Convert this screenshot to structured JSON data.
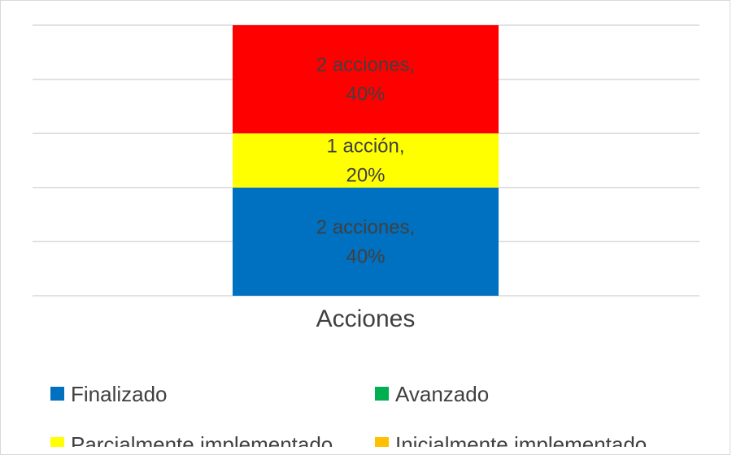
{
  "chart_data": {
    "type": "bar",
    "stacked": true,
    "normalized_percent": true,
    "categories": [
      "Acciones"
    ],
    "series": [
      {
        "name": "Finalizado",
        "color": "#0070C0",
        "values": [
          2
        ],
        "percent": [
          40
        ],
        "label": "2 acciones,\n40%"
      },
      {
        "name": "Avanzado",
        "color": "#00B050",
        "values": [
          0
        ],
        "percent": [
          0
        ],
        "label": ""
      },
      {
        "name": "Parcialmente implementado",
        "color": "#FFFF00",
        "values": [
          1
        ],
        "percent": [
          20
        ],
        "label": "1 acción,\n20%"
      },
      {
        "name": "Inicialmente implementado",
        "color": "#FFC000",
        "values": [
          0
        ],
        "percent": [
          0
        ],
        "label": ""
      },
      {
        "name": "",
        "color": "#FF0000",
        "values": [
          2
        ],
        "percent": [
          40
        ],
        "label": "2 acciones,\n40%"
      }
    ],
    "ylim": [
      0,
      100
    ],
    "grid": true,
    "legend_position": "bottom",
    "title": "",
    "xlabel": "",
    "ylabel": ""
  }
}
